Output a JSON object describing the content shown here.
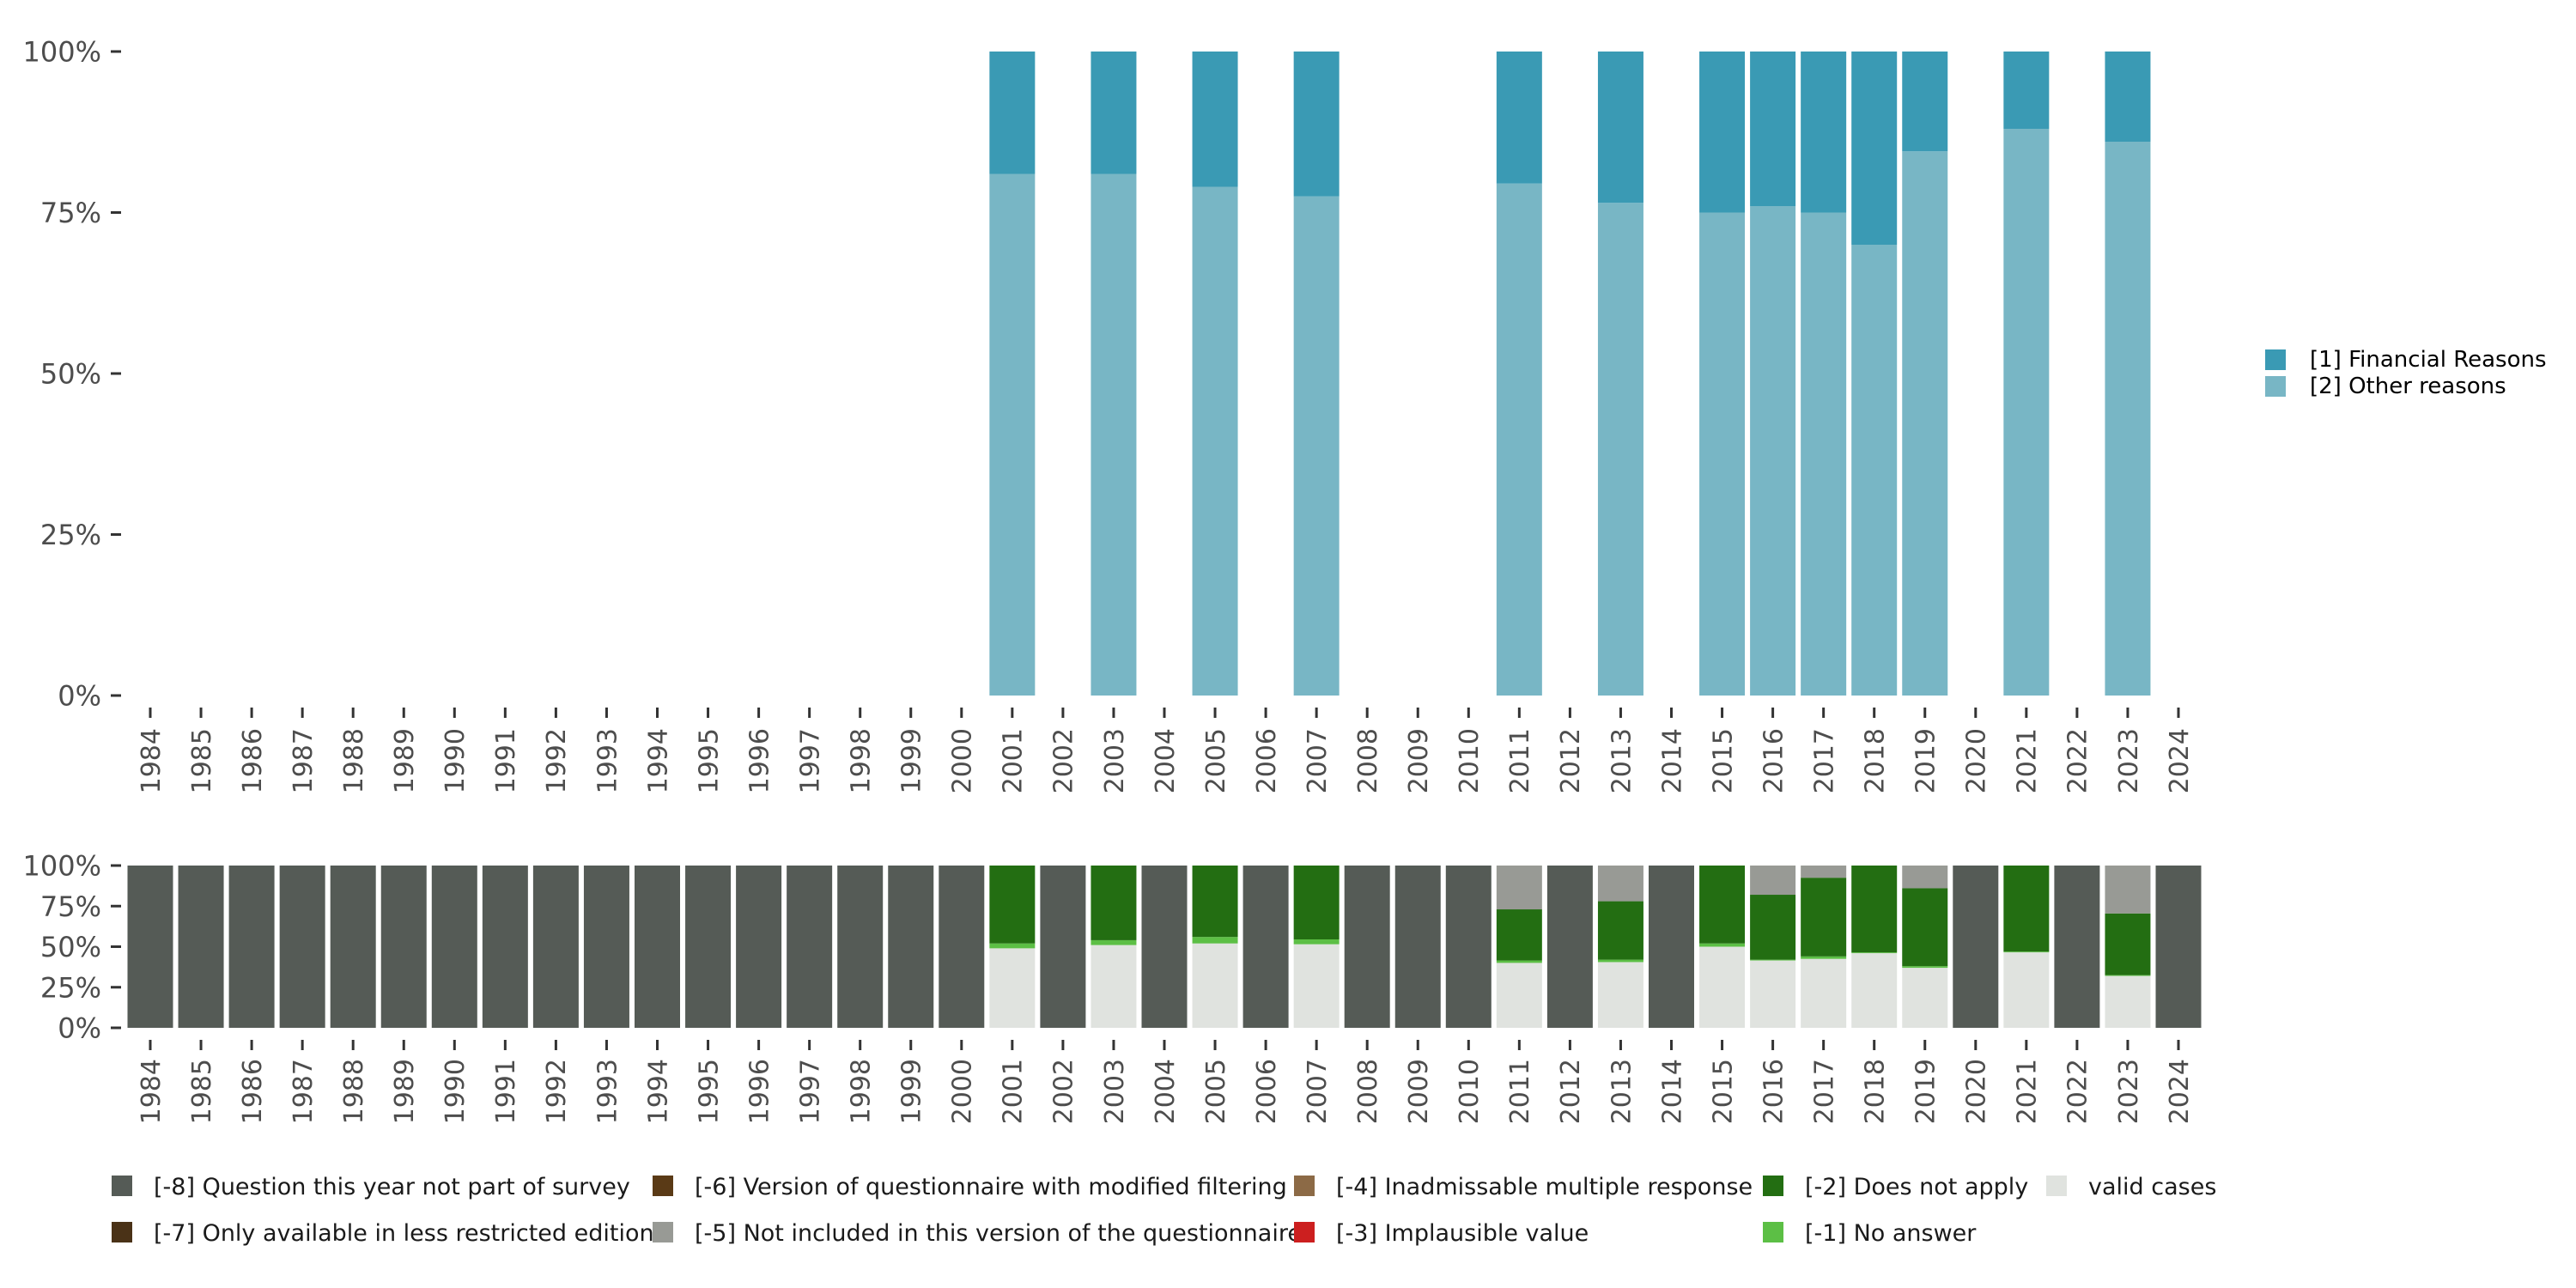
{
  "colors": {
    "financial": "#3a9ab4",
    "other": "#78b6c5",
    "m8": "#555b56",
    "m7": "#4a3217",
    "m6": "#5a3a16",
    "m5": "#989a95",
    "m4": "#8c6a46",
    "m3": "#cc1f1f",
    "m2": "#236e12",
    "m1": "#5cbf45",
    "valid": "#e0e3df",
    "axis_text": "#4d4d4d",
    "tick": "#333333"
  },
  "chart_data": [
    {
      "type": "bar",
      "stacked": true,
      "title": "",
      "xlabel": "",
      "ylabel": "",
      "ylim": [
        0,
        100
      ],
      "y_ticks": [
        "0%",
        "25%",
        "50%",
        "75%",
        "100%"
      ],
      "categories": [
        "1984",
        "1985",
        "1986",
        "1987",
        "1988",
        "1989",
        "1990",
        "1991",
        "1992",
        "1993",
        "1994",
        "1995",
        "1996",
        "1997",
        "1998",
        "1999",
        "2000",
        "2001",
        "2002",
        "2003",
        "2004",
        "2005",
        "2006",
        "2007",
        "2008",
        "2009",
        "2010",
        "2011",
        "2012",
        "2013",
        "2014",
        "2015",
        "2016",
        "2017",
        "2018",
        "2019",
        "2020",
        "2021",
        "2022",
        "2023",
        "2024"
      ],
      "series": [
        {
          "name": "[2] Other reasons",
          "color_key": "other",
          "values": {
            "2001": 81,
            "2003": 81,
            "2005": 79,
            "2007": 77.5,
            "2011": 79.5,
            "2013": 76.5,
            "2015": 75,
            "2016": 76,
            "2017": 75,
            "2018": 70,
            "2019": 84.5,
            "2021": 88,
            "2023": 86
          }
        },
        {
          "name": "[1] Financial Reasons",
          "color_key": "financial",
          "values": {
            "2001": 19,
            "2003": 19,
            "2005": 21,
            "2007": 22.5,
            "2011": 20.5,
            "2013": 23.5,
            "2015": 25,
            "2016": 24,
            "2017": 25,
            "2018": 30,
            "2019": 15.5,
            "2021": 12,
            "2023": 14
          }
        }
      ],
      "legend": {
        "position": "right",
        "items": [
          {
            "label": "[1] Financial Reasons",
            "color_key": "financial"
          },
          {
            "label": "[2] Other reasons",
            "color_key": "other"
          }
        ]
      }
    },
    {
      "type": "bar",
      "stacked": true,
      "title": "",
      "xlabel": "",
      "ylabel": "",
      "ylim": [
        0,
        100
      ],
      "y_ticks": [
        "0%",
        "25%",
        "50%",
        "75%",
        "100%"
      ],
      "categories": [
        "1984",
        "1985",
        "1986",
        "1987",
        "1988",
        "1989",
        "1990",
        "1991",
        "1992",
        "1993",
        "1994",
        "1995",
        "1996",
        "1997",
        "1998",
        "1999",
        "2000",
        "2001",
        "2002",
        "2003",
        "2004",
        "2005",
        "2006",
        "2007",
        "2008",
        "2009",
        "2010",
        "2011",
        "2012",
        "2013",
        "2014",
        "2015",
        "2016",
        "2017",
        "2018",
        "2019",
        "2020",
        "2021",
        "2022",
        "2023",
        "2024"
      ],
      "series": [
        {
          "name": "valid cases",
          "color_key": "valid",
          "values": {
            "2001": 49,
            "2003": 51,
            "2005": 52,
            "2007": 51.5,
            "2011": 40,
            "2013": 40.5,
            "2015": 50,
            "2016": 41.5,
            "2017": 42.5,
            "2018": 46,
            "2019": 37,
            "2021": 46.5,
            "2023": 32
          }
        },
        {
          "name": "[-1] No answer",
          "color_key": "m1",
          "values": {
            "2001": 3,
            "2003": 3,
            "2005": 4,
            "2007": 3,
            "2011": 1.5,
            "2013": 1.5,
            "2015": 2,
            "2016": 0.5,
            "2017": 1.5,
            "2018": 0.5,
            "2019": 1,
            "2021": 0.5,
            "2023": 0.5
          }
        },
        {
          "name": "[-2] Does not apply",
          "color_key": "m2",
          "values": {
            "2001": 48,
            "2003": 46,
            "2005": 44,
            "2007": 45.5,
            "2011": 31.5,
            "2013": 36,
            "2015": 48,
            "2016": 40,
            "2017": 48.5,
            "2018": 53.5,
            "2019": 48,
            "2021": 53,
            "2023": 38
          }
        },
        {
          "name": "[-5] Not included in this version of the questionnaire",
          "color_key": "m5",
          "values": {
            "2011": 27,
            "2013": 22,
            "2016": 18,
            "2017": 7.5,
            "2019": 14,
            "2023": 29.5
          }
        },
        {
          "name": "[-8] Question this year not part of survey",
          "color_key": "m8",
          "values": {
            "1984": 100,
            "1985": 100,
            "1986": 100,
            "1987": 100,
            "1988": 100,
            "1989": 100,
            "1990": 100,
            "1991": 100,
            "1992": 100,
            "1993": 100,
            "1994": 100,
            "1995": 100,
            "1996": 100,
            "1997": 100,
            "1998": 100,
            "1999": 100,
            "2000": 100,
            "2002": 100,
            "2004": 100,
            "2006": 100,
            "2008": 100,
            "2009": 100,
            "2010": 100,
            "2012": 100,
            "2014": 100,
            "2020": 100,
            "2022": 100,
            "2024": 100
          }
        }
      ],
      "legend": {
        "position": "bottom",
        "items": [
          {
            "label": "[-8] Question this year not part of survey",
            "color_key": "m8"
          },
          {
            "label": "[-7] Only available in less restricted edition",
            "color_key": "m7"
          },
          {
            "label": "[-6] Version of questionnaire with modified filtering",
            "color_key": "m6"
          },
          {
            "label": "[-5] Not included in this version of the questionnaire",
            "color_key": "m5"
          },
          {
            "label": "[-4] Inadmissable multiple response",
            "color_key": "m4"
          },
          {
            "label": "[-3] Implausible value",
            "color_key": "m3"
          },
          {
            "label": "[-2] Does not apply",
            "color_key": "m2"
          },
          {
            "label": "[-1] No answer",
            "color_key": "m1"
          },
          {
            "label": "valid cases",
            "color_key": "valid"
          }
        ]
      }
    }
  ]
}
